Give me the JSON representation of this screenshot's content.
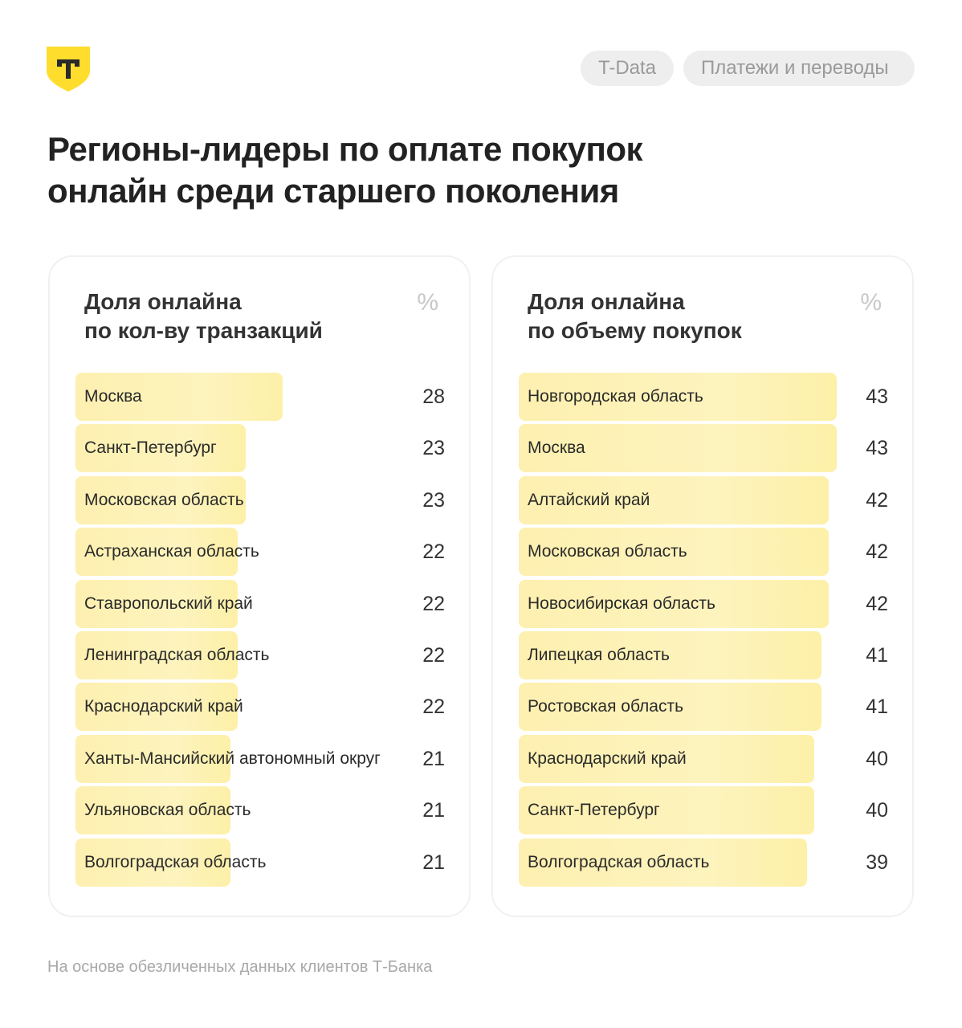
{
  "header": {
    "tags": [
      "T-Data",
      "Платежи и переводы"
    ],
    "logo_letter": "Т"
  },
  "title_lines": [
    "Регионы-лидеры по оплате покупок",
    "онлайн среди старшего поколения"
  ],
  "footer": "На основе обезличенных данных клиентов Т-Банка",
  "colors": {
    "bar": "#fdf2b6",
    "logo": "#ffdd2d"
  },
  "chart_data": [
    {
      "type": "bar",
      "orientation": "horizontal",
      "title_lines": [
        "Доля онлайна",
        "по кол-ву транзакций"
      ],
      "unit": "%",
      "categories": [
        "Москва",
        "Санкт-Петербург",
        "Московская область",
        "Астраханская область",
        "Ставропольский край",
        "Ленинградская область",
        "Краснодарский край",
        "Ханты-Мансийский автономный округ",
        "Ульяновская область",
        "Волгоградская область"
      ],
      "values": [
        28,
        23,
        23,
        22,
        22,
        22,
        22,
        21,
        21,
        21
      ]
    },
    {
      "type": "bar",
      "orientation": "horizontal",
      "title_lines": [
        "Доля онлайна",
        "по объему покупок"
      ],
      "unit": "%",
      "categories": [
        "Новгородская область",
        "Москва",
        "Алтайский край",
        "Московская область",
        "Новосибирская область",
        "Липецкая область",
        "Ростовская область",
        "Краснодарский край",
        "Санкт-Петербург",
        "Волгоградская область"
      ],
      "values": [
        43,
        43,
        42,
        42,
        42,
        41,
        41,
        40,
        40,
        39
      ]
    }
  ]
}
